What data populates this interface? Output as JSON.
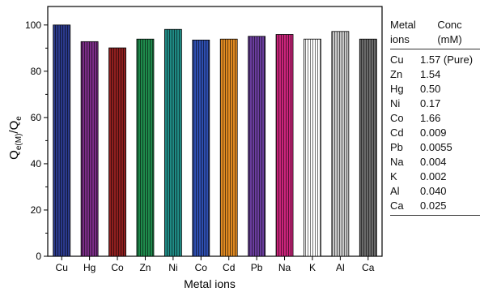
{
  "chart_data": {
    "type": "bar",
    "categories": [
      "Cu",
      "Hg",
      "Co",
      "Zn",
      "Ni",
      "Co",
      "Cd",
      "Pb",
      "Na",
      "K",
      "Al",
      "Ca"
    ],
    "values": [
      100,
      92.8,
      90.1,
      93.9,
      98.1,
      93.5,
      93.9,
      95.1,
      95.9,
      93.9,
      97.2,
      93.9
    ],
    "colors": [
      "#2b3a8c",
      "#7a2d86",
      "#8e1f1f",
      "#1f8a4c",
      "#1f8a84",
      "#2e4eb0",
      "#e08a22",
      "#6a3d9e",
      "#c9247a",
      "#ffffff",
      "#c8c8c8",
      "#6a6a6a"
    ],
    "xlabel": "Metal ions",
    "ylabel": "Qe(M)/Qe",
    "ylabel_main": "Q",
    "ylabel_sub1": "e(M)",
    "ylabel_mid": "/Q",
    "ylabel_sub2": "e",
    "ylim": [
      0,
      108
    ],
    "yticks": [
      "0",
      "20",
      "40",
      "60",
      "80",
      "100"
    ],
    "grid": false
  },
  "table": {
    "header_col1_line1": "Metal",
    "header_col1_line2": "ions",
    "header_col2_line1": "Conc",
    "header_col2_line2": "(mM)",
    "rows": [
      {
        "ion": "Cu",
        "conc": "1.57 (Pure)"
      },
      {
        "ion": "Zn",
        "conc": "1.54"
      },
      {
        "ion": "Hg",
        "conc": "0.50"
      },
      {
        "ion": "Ni",
        "conc": "0.17"
      },
      {
        "ion": "Co",
        "conc": "1.66"
      },
      {
        "ion": "Cd",
        "conc": "0.009"
      },
      {
        "ion": "Pb",
        "conc": "0.0055"
      },
      {
        "ion": "Na",
        "conc": "0.004"
      },
      {
        "ion": "K",
        "conc": "0.002"
      },
      {
        "ion": "Al",
        "conc": "0.040"
      },
      {
        "ion": "Ca",
        "conc": "0.025"
      }
    ]
  }
}
